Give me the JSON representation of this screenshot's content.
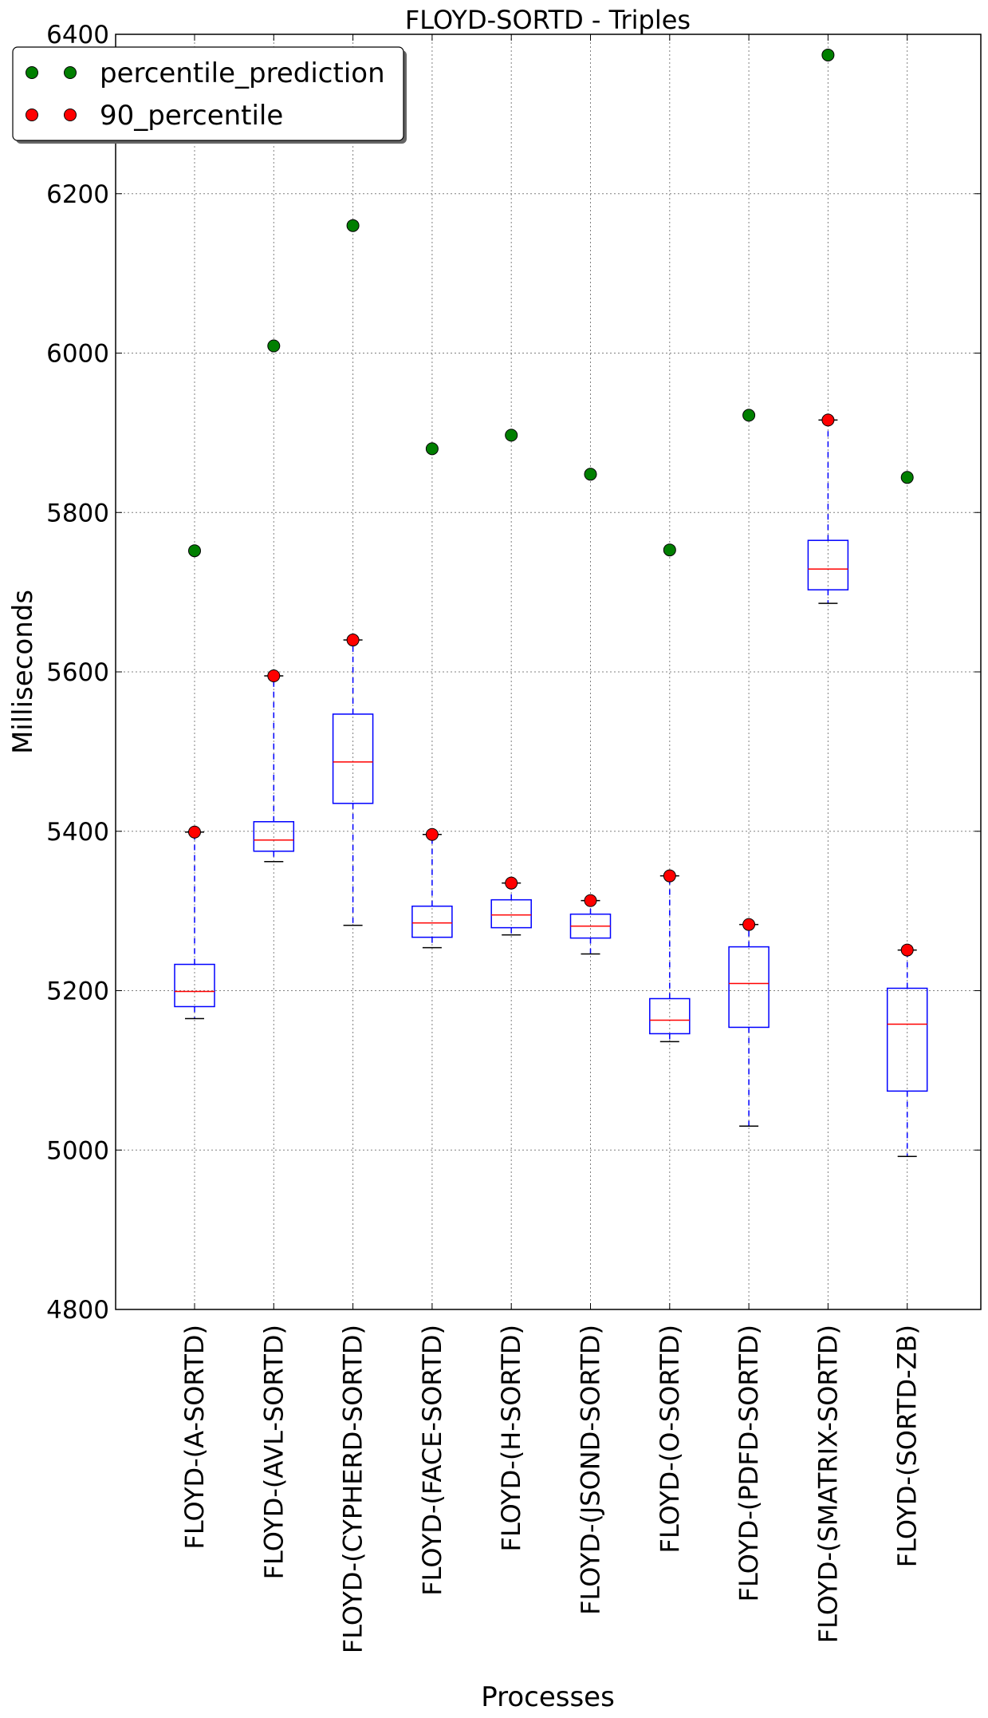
{
  "chart_data": {
    "type": "box",
    "title": "FLOYD-SORTD - Triples",
    "xlabel": "Processes",
    "ylabel": "Milliseconds",
    "ylim": [
      4800,
      6400
    ],
    "yticks": [
      4800,
      5000,
      5200,
      5400,
      5600,
      5800,
      6000,
      6200,
      6400
    ],
    "grid": true,
    "legend_position": "top-left",
    "categories": [
      "FLOYD-(A-SORTD)",
      "FLOYD-(AVL-SORTD)",
      "FLOYD-(CYPHERD-SORTD)",
      "FLOYD-(FACE-SORTD)",
      "FLOYD-(H-SORTD)",
      "FLOYD-(JSOND-SORTD)",
      "FLOYD-(O-SORTD)",
      "FLOYD-(PDFD-SORTD)",
      "FLOYD-(SMATRIX-SORTD)",
      "FLOYD-(SORTD-ZB)"
    ],
    "boxes": [
      {
        "whisker_low": 5165,
        "q1": 5180,
        "median": 5199,
        "q3": 5233,
        "whisker_high": 5399
      },
      {
        "whisker_low": 5362,
        "q1": 5375,
        "median": 5389,
        "q3": 5412,
        "whisker_high": 5595
      },
      {
        "whisker_low": 5282,
        "q1": 5435,
        "median": 5487,
        "q3": 5547,
        "whisker_high": 5640
      },
      {
        "whisker_low": 5254,
        "q1": 5267,
        "median": 5285,
        "q3": 5306,
        "whisker_high": 5396
      },
      {
        "whisker_low": 5270,
        "q1": 5279,
        "median": 5295,
        "q3": 5314,
        "whisker_high": 5335
      },
      {
        "whisker_low": 5246,
        "q1": 5266,
        "median": 5281,
        "q3": 5296,
        "whisker_high": 5313
      },
      {
        "whisker_low": 5136,
        "q1": 5146,
        "median": 5163,
        "q3": 5190,
        "whisker_high": 5344
      },
      {
        "whisker_low": 5030,
        "q1": 5154,
        "median": 5209,
        "q3": 5255,
        "whisker_high": 5283
      },
      {
        "whisker_low": 5686,
        "q1": 5703,
        "median": 5729,
        "q3": 5765,
        "whisker_high": 5916
      },
      {
        "whisker_low": 4992,
        "q1": 5074,
        "median": 5158,
        "q3": 5203,
        "whisker_high": 5251
      }
    ],
    "series": [
      {
        "name": "percentile_prediction",
        "color": "#007f00",
        "values": [
          5752,
          6009,
          6160,
          5880,
          5897,
          5848,
          5753,
          5922,
          6374,
          5844
        ]
      },
      {
        "name": "90_percentile",
        "color": "#ff0000",
        "values": [
          5399,
          5595,
          5640,
          5396,
          5335,
          5313,
          5344,
          5283,
          5916,
          5251
        ]
      }
    ],
    "colors": {
      "box": "#0000ff",
      "median": "#ff0000",
      "whisker_cap": "#000000",
      "grid": "#808080"
    }
  }
}
